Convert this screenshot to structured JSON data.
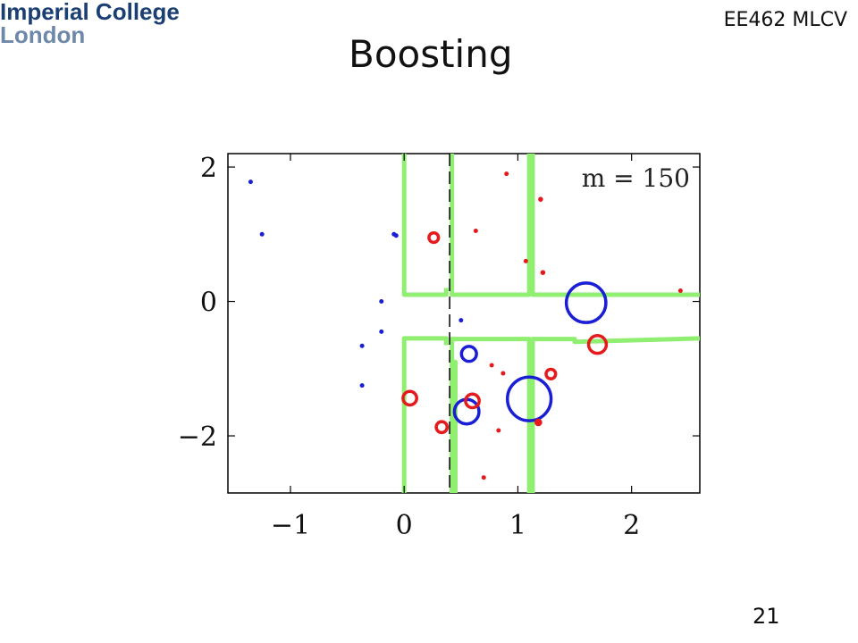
{
  "header": {
    "logo_line1": "Imperial College",
    "logo_line2": "London",
    "course": "EE462 MLCV",
    "title": "Boosting"
  },
  "footer": {
    "page_number": "21"
  },
  "chart_data": {
    "type": "scatter",
    "annotation": "m = 150",
    "xlim": [
      -1.55,
      2.6
    ],
    "ylim": [
      -2.85,
      2.2
    ],
    "xticks": [
      -1,
      0,
      1,
      2
    ],
    "yticks": [
      -2,
      0,
      2
    ],
    "xtick_labels": [
      "−1",
      "0",
      "1",
      "2"
    ],
    "ytick_labels": [
      "−2",
      "0",
      "2"
    ],
    "grid": false,
    "colors": {
      "class_red": "#e41a1c",
      "class_blue": "#1a1fd6",
      "boundary": "#90ee70",
      "divider": "#000000"
    },
    "series": [
      {
        "color": "#1a1fd6",
        "points": [
          {
            "x": -1.35,
            "y": 1.78,
            "w": 0.02
          },
          {
            "x": -1.25,
            "y": 1.0,
            "w": 0.02
          },
          {
            "x": -0.09,
            "y": 1.0,
            "w": 0.02
          },
          {
            "x": -0.07,
            "y": 0.98,
            "w": 0.02
          },
          {
            "x": -0.2,
            "y": 0.0,
            "w": 0.015
          },
          {
            "x": 0.5,
            "y": -0.28,
            "w": 0.015
          },
          {
            "x": -0.37,
            "y": -0.66,
            "w": 0.015
          },
          {
            "x": -0.2,
            "y": -0.45,
            "w": 0.015
          },
          {
            "x": -0.37,
            "y": -1.25,
            "w": 0.015
          },
          {
            "x": 0.57,
            "y": -0.78,
            "w": 0.11
          },
          {
            "x": 0.55,
            "y": -1.64,
            "w": 0.18
          },
          {
            "x": 1.1,
            "y": -1.45,
            "w": 0.32
          },
          {
            "x": 1.6,
            "y": -0.02,
            "w": 0.29
          }
        ]
      },
      {
        "color": "#e41a1c",
        "points": [
          {
            "x": 0.9,
            "y": 1.9,
            "w": 0.015
          },
          {
            "x": 1.2,
            "y": 1.52,
            "w": 0.03
          },
          {
            "x": 0.63,
            "y": 1.05,
            "w": 0.015
          },
          {
            "x": 0.26,
            "y": 0.95,
            "w": 0.07
          },
          {
            "x": 1.07,
            "y": 0.6,
            "w": 0.015
          },
          {
            "x": 1.22,
            "y": 0.43,
            "w": 0.03
          },
          {
            "x": 2.43,
            "y": 0.16,
            "w": 0.015
          },
          {
            "x": 1.7,
            "y": -0.64,
            "w": 0.13
          },
          {
            "x": 0.77,
            "y": -0.95,
            "w": 0.015
          },
          {
            "x": 0.87,
            "y": -1.07,
            "w": 0.015
          },
          {
            "x": 1.29,
            "y": -1.08,
            "w": 0.07
          },
          {
            "x": 0.05,
            "y": -1.44,
            "w": 0.1
          },
          {
            "x": 0.6,
            "y": -1.48,
            "w": 0.1
          },
          {
            "x": 1.18,
            "y": -1.8,
            "w": 0.05
          },
          {
            "x": 0.33,
            "y": -1.87,
            "w": 0.08
          },
          {
            "x": 0.83,
            "y": -1.92,
            "w": 0.015
          },
          {
            "x": 0.7,
            "y": -2.62,
            "w": 0.015
          }
        ]
      }
    ],
    "boundaries": [
      [
        [
          0,
          2.2
        ],
        [
          0,
          0.1
        ],
        [
          0.37,
          0.1
        ],
        [
          0.37,
          0.2
        ]
      ],
      [
        [
          0.42,
          2.2
        ],
        [
          0.42,
          0.1
        ],
        [
          1.1,
          0.1
        ],
        [
          1.1,
          2.2
        ]
      ],
      [
        [
          1.13,
          2.2
        ],
        [
          1.13,
          0.1
        ],
        [
          2.6,
          0.1
        ]
      ],
      [
        [
          0,
          -2.85
        ],
        [
          0,
          -0.55
        ],
        [
          0.37,
          -0.55
        ],
        [
          0.37,
          -0.65
        ]
      ],
      [
        [
          0.42,
          -2.85
        ],
        [
          0.42,
          -0.56
        ],
        [
          1.1,
          -0.56
        ],
        [
          1.1,
          -2.85
        ]
      ],
      [
        [
          1.13,
          -2.85
        ],
        [
          1.13,
          -0.56
        ],
        [
          1.5,
          -0.56
        ],
        [
          1.5,
          -0.6
        ],
        [
          2.6,
          -0.55
        ]
      ],
      [
        [
          0.42,
          -2.85
        ],
        [
          0.42,
          -0.9
        ],
        [
          0.45,
          -0.9
        ],
        [
          0.45,
          -2.85
        ]
      ]
    ],
    "divider_x": 0.4
  }
}
